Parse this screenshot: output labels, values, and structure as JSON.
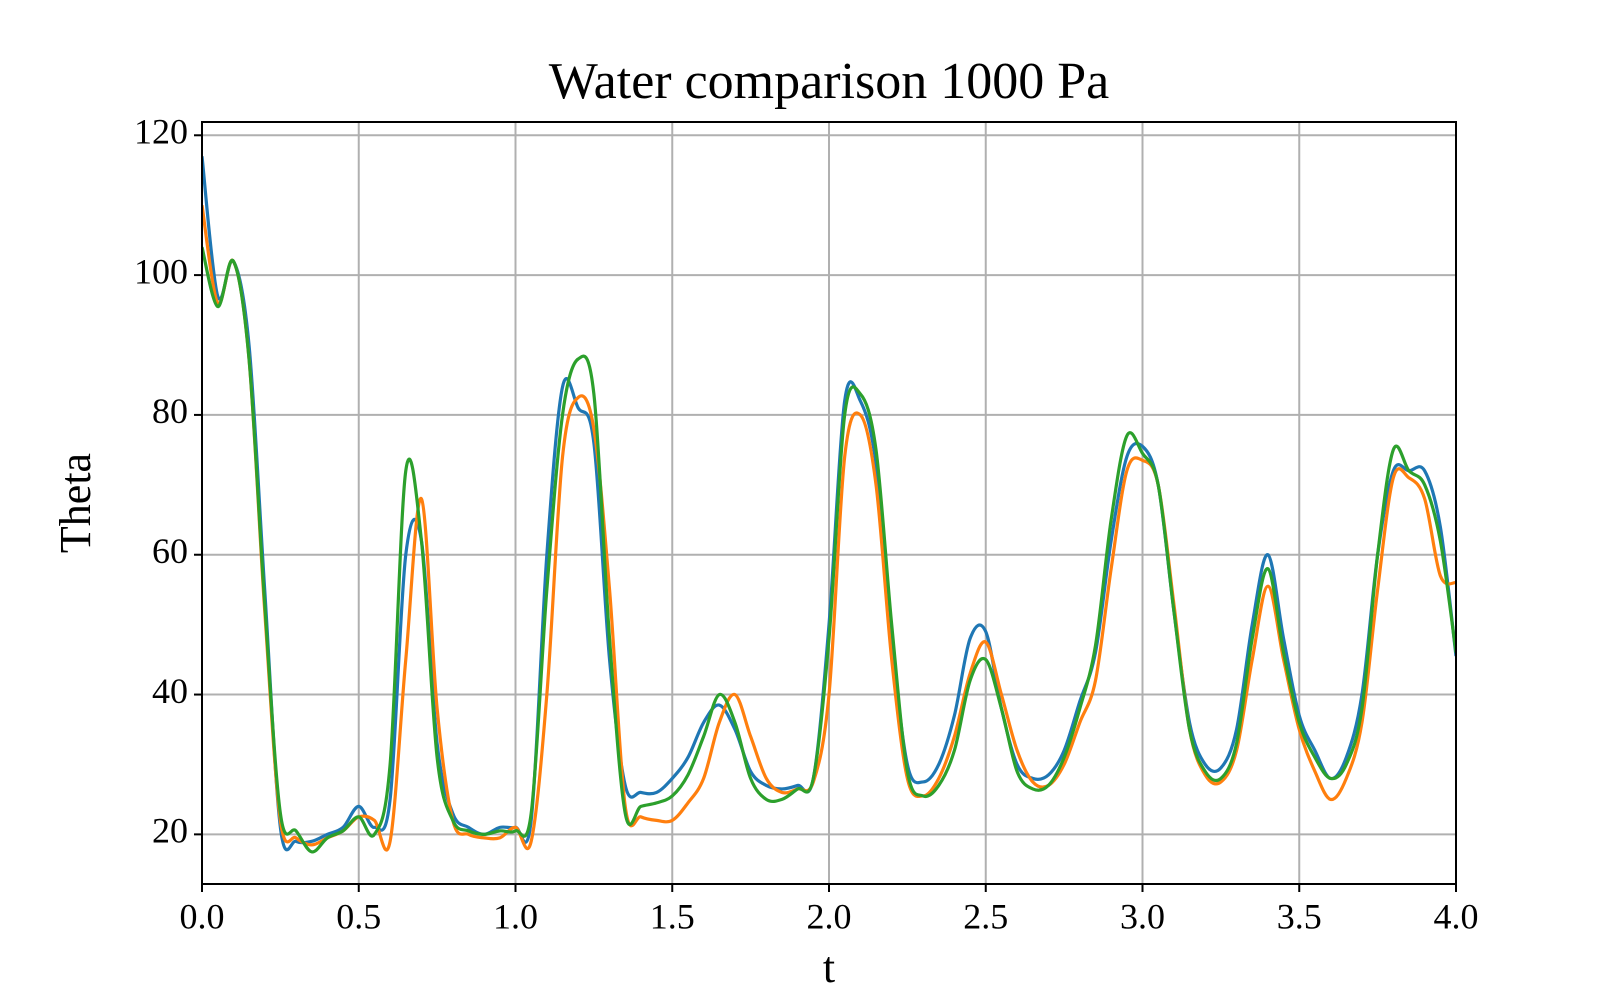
{
  "chart_data": {
    "type": "line",
    "title": "Water comparison 1000 Pa",
    "x_label": "t",
    "y_label": "Theta",
    "x": [
      0,
      0.05,
      0.1,
      0.15,
      0.2,
      0.25,
      0.3,
      0.35,
      0.4,
      0.45,
      0.5,
      0.55,
      0.6,
      0.65,
      0.7,
      0.75,
      0.8,
      0.85,
      0.9,
      0.95,
      1.0,
      1.05,
      1.1,
      1.15,
      1.2,
      1.25,
      1.3,
      1.35,
      1.4,
      1.45,
      1.5,
      1.55,
      1.6,
      1.65,
      1.7,
      1.75,
      1.8,
      1.85,
      1.9,
      1.95,
      2.0,
      2.05,
      2.1,
      2.15,
      2.2,
      2.25,
      2.3,
      2.35,
      2.4,
      2.45,
      2.5,
      2.55,
      2.6,
      2.65,
      2.7,
      2.75,
      2.8,
      2.85,
      2.9,
      2.95,
      3.0,
      3.05,
      3.1,
      3.15,
      3.2,
      3.25,
      3.3,
      3.35,
      3.4,
      3.45,
      3.5,
      3.55,
      3.6,
      3.65,
      3.7,
      3.75,
      3.8,
      3.85,
      3.9,
      3.95,
      4.0
    ],
    "series": [
      {
        "color": "#1f77b4",
        "values": [
          117,
          97,
          102,
          90,
          55,
          21,
          19,
          19,
          20,
          21,
          24,
          21,
          25,
          60,
          62,
          33,
          23,
          21,
          20,
          21,
          21,
          22,
          60,
          84,
          81,
          76,
          45,
          27,
          26,
          26,
          28,
          31,
          36,
          38.5,
          35,
          29,
          27,
          26.5,
          27,
          28,
          50,
          82,
          82,
          73,
          48,
          30,
          27.5,
          30,
          37,
          48,
          49,
          38,
          30,
          28,
          28.5,
          32,
          39,
          46,
          62,
          74,
          75.5,
          70,
          52,
          36,
          30,
          29.5,
          35,
          50,
          60,
          48,
          37,
          32,
          28,
          31,
          40,
          60,
          72,
          72,
          72,
          64,
          45.5
        ]
      },
      {
        "color": "#ff7f0e",
        "values": [
          110,
          96,
          102,
          88,
          52,
          22,
          19.5,
          18.5,
          19.5,
          20.5,
          22.5,
          22,
          19,
          45,
          68,
          38,
          22,
          20,
          19.5,
          19.5,
          21,
          19,
          40,
          74,
          82.5,
          78,
          55,
          24,
          22.5,
          22,
          22,
          24.5,
          28,
          36,
          40,
          34,
          28,
          26,
          26.5,
          27.5,
          40,
          74,
          80,
          70,
          45,
          28,
          25.5,
          28,
          34,
          43,
          47.5,
          40,
          32,
          27.5,
          27,
          30,
          36,
          42,
          58,
          72,
          73.5,
          70,
          53,
          35,
          28.5,
          27.5,
          32,
          45,
          55.5,
          45,
          35,
          29,
          25,
          28,
          36,
          55,
          71,
          71,
          68,
          57,
          56
        ]
      },
      {
        "color": "#2ca02c",
        "values": [
          104,
          95.5,
          102,
          88,
          53,
          23,
          20.5,
          17.5,
          19.5,
          20.5,
          22.5,
          20,
          30,
          72,
          62,
          31,
          22,
          20.5,
          20,
          20.5,
          20.5,
          23,
          55,
          80,
          88,
          83,
          48,
          23,
          24,
          24.5,
          25.5,
          28.5,
          34,
          40,
          36,
          28,
          25,
          25,
          26.5,
          28,
          48,
          80,
          83,
          75,
          50,
          29,
          25.5,
          27,
          32,
          42,
          45,
          38,
          29,
          26.5,
          27,
          31,
          38,
          47,
          65,
          77,
          74.5,
          70,
          52,
          35,
          29,
          28,
          33,
          48,
          58,
          46,
          36,
          31,
          28,
          30,
          38,
          60,
          75,
          72,
          70,
          62,
          46
        ]
      }
    ],
    "xlim": [
      0,
      4
    ],
    "ylim": [
      12.9,
      121.9
    ],
    "xticks": [
      {
        "value": 0,
        "label": "0.0"
      },
      0.5,
      {
        "value": 1,
        "label": "1.0"
      },
      1.5,
      {
        "value": 2,
        "label": "2.0"
      },
      2.5,
      {
        "value": 3,
        "label": "3.0"
      },
      3.5,
      {
        "value": 4,
        "label": "4.0"
      }
    ],
    "yticks": [
      20,
      40,
      60,
      80,
      100,
      120
    ],
    "grid": true
  }
}
